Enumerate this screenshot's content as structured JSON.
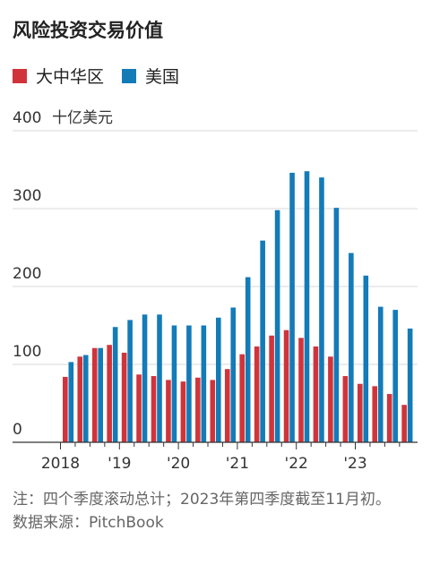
{
  "title": "风险投资交易价值",
  "legend": [
    {
      "name": "大中华区",
      "color": "#d0343a"
    },
    {
      "name": "美国",
      "color": "#137bb8"
    }
  ],
  "chart_data": {
    "type": "bar",
    "title": "风险投资交易价值",
    "ylabel": "十亿美元",
    "ylim": [
      0,
      400
    ],
    "yticks": [
      {
        "value": 0,
        "label": "0"
      },
      {
        "value": 100,
        "label": "100"
      },
      {
        "value": 200,
        "label": "200"
      },
      {
        "value": 300,
        "label": "300"
      },
      {
        "value": 400,
        "label": "400"
      }
    ],
    "x_tick_labels": [
      {
        "index": 0,
        "label": "2018"
      },
      {
        "index": 4,
        "label": "'19"
      },
      {
        "index": 8,
        "label": "'20"
      },
      {
        "index": 12,
        "label": "'21"
      },
      {
        "index": 16,
        "label": "'22"
      },
      {
        "index": 20,
        "label": "'23"
      }
    ],
    "categories": [
      "2018 Q1",
      "2018 Q2",
      "2018 Q3",
      "2018 Q4",
      "2019 Q1",
      "2019 Q2",
      "2019 Q3",
      "2019 Q4",
      "2020 Q1",
      "2020 Q2",
      "2020 Q3",
      "2020 Q4",
      "2021 Q1",
      "2021 Q2",
      "2021 Q3",
      "2021 Q4",
      "2022 Q1",
      "2022 Q2",
      "2022 Q3",
      "2022 Q4",
      "2023 Q1",
      "2023 Q2",
      "2023 Q3",
      "2023 Q4"
    ],
    "series": [
      {
        "name": "大中华区",
        "color": "#d0343a",
        "values": [
          84,
          110,
          121,
          125,
          115,
          87,
          85,
          80,
          78,
          83,
          80,
          94,
          113,
          123,
          137,
          144,
          134,
          123,
          110,
          85,
          75,
          72,
          62,
          48
        ]
      },
      {
        "name": "美国",
        "color": "#137bb8",
        "values": [
          103,
          112,
          121,
          148,
          157,
          164,
          164,
          150,
          150,
          150,
          160,
          173,
          212,
          259,
          298,
          346,
          348,
          340,
          301,
          243,
          214,
          174,
          170,
          146
        ]
      }
    ],
    "grid": true,
    "legend_position": "top-left"
  },
  "footer": {
    "note": "注：四个季度滚动总计；2023年第四季度截至11月初。",
    "source": "数据来源：PitchBook"
  }
}
